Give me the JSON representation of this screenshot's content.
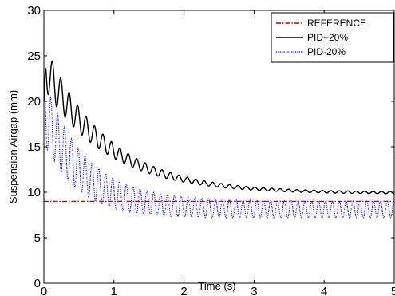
{
  "chart_data": {
    "type": "line",
    "title": "",
    "xlabel": "Time  (s)",
    "ylabel": "Suspension Airgap (mm)",
    "xlim": [
      0,
      5
    ],
    "ylim": [
      0,
      30
    ],
    "x_ticks": [
      "0",
      "1",
      "2",
      "3",
      "4",
      "5"
    ],
    "y_ticks": [
      "0",
      "5",
      "10",
      "15",
      "20",
      "25",
      "30"
    ],
    "grid": false,
    "legend_position": "top-right",
    "series": [
      {
        "name": "REFERENCE",
        "color": "#d40000",
        "style": "dash-dot",
        "x": [
          0,
          5
        ],
        "y": [
          9,
          9
        ]
      },
      {
        "name": "PID+20%",
        "color": "#000000",
        "style": "solid",
        "initial": 20,
        "peak": 24,
        "final": 9.9,
        "decay_time_constant_s": 0.9,
        "oscillation_frequency_hz": 8.3,
        "oscillation_amplitude_start_mm": 2.5,
        "oscillation_amplitude_end_mm": 0.12
      },
      {
        "name": "PID-20%",
        "color": "#1a1aff",
        "style": "dotted",
        "initial": 20,
        "peak": 19,
        "final": 8.1,
        "decay_time_constant_s": 0.55,
        "oscillation_frequency_hz": 10.2,
        "oscillation_amplitude_start_mm": 3.5,
        "oscillation_amplitude_end_mm": 0.9
      }
    ]
  }
}
